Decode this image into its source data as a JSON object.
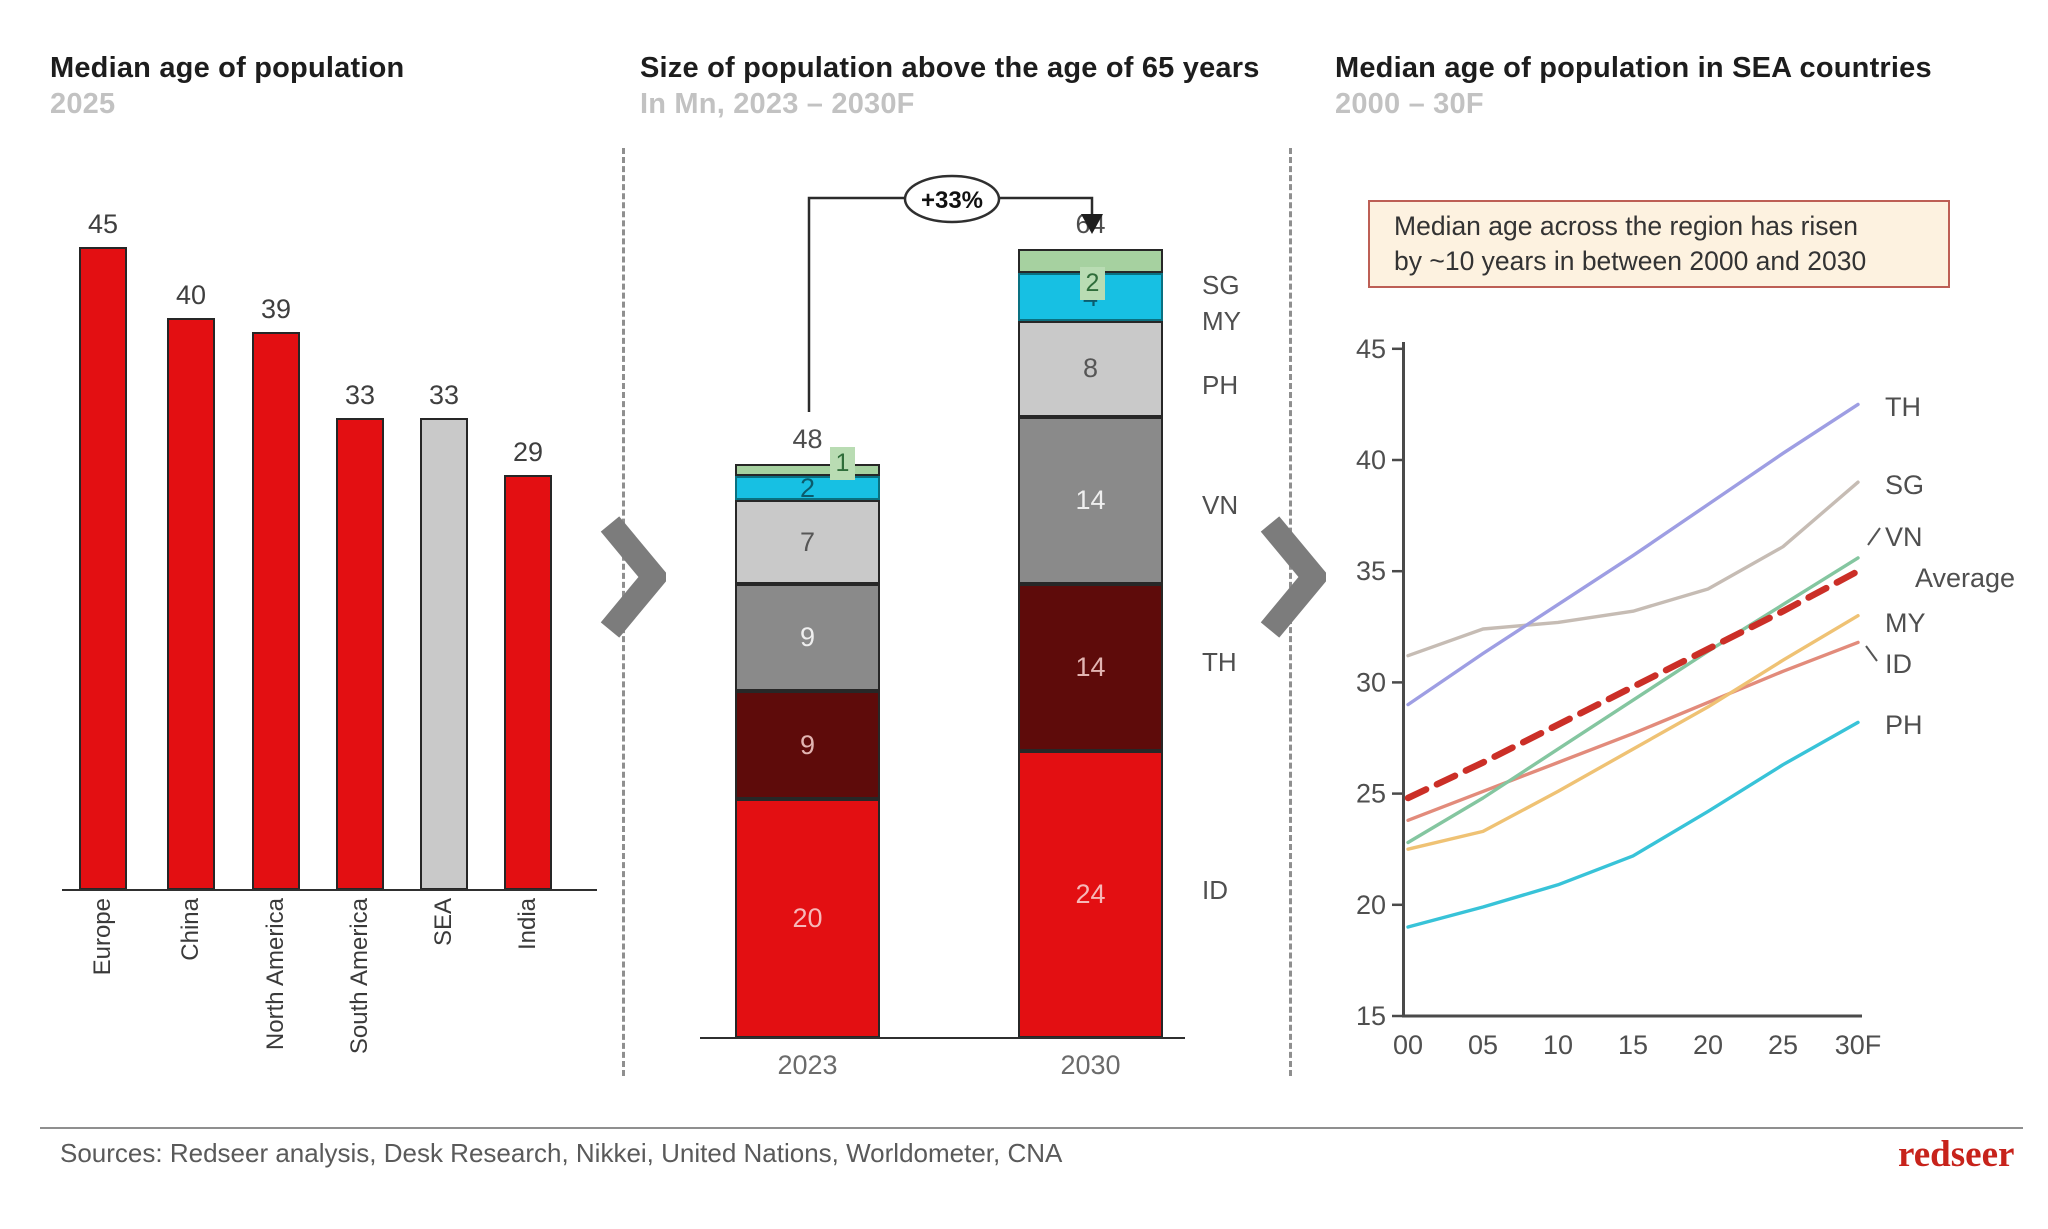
{
  "chart_data": [
    {
      "type": "bar",
      "title": "Median age of population",
      "subtitle": "2025",
      "categories": [
        "Europe",
        "China",
        "North America",
        "South America",
        "SEA",
        "India"
      ],
      "values": [
        45,
        40,
        39,
        33,
        33,
        29
      ],
      "bar_colors": [
        "#e30f12",
        "#e30f12",
        "#e30f12",
        "#e30f12",
        "#c9c9c9",
        "#e30f12"
      ],
      "ylim": [
        0,
        45
      ]
    },
    {
      "type": "stacked-bar",
      "title": "Size of population above the age of 65 years",
      "subtitle": "In Mn, 2023 – 2030F",
      "categories": [
        "2023",
        "2030"
      ],
      "series": [
        {
          "name": "ID",
          "values": [
            20,
            24
          ],
          "color": "#e30f12",
          "label_color": "#f6b8b8"
        },
        {
          "name": "TH",
          "values": [
            9,
            14
          ],
          "color": "#5e0b0a",
          "label_color": "#e2b5b2"
        },
        {
          "name": "VN",
          "values": [
            9,
            14
          ],
          "color": "#8a8a8a",
          "label_color": "#efefef"
        },
        {
          "name": "PH",
          "values": [
            7,
            8
          ],
          "color": "#c9c9c9",
          "label_color": "#565656"
        },
        {
          "name": "MY",
          "values": [
            2,
            4
          ],
          "color": "#17c0e3",
          "label_color": "#0b5c6d"
        },
        {
          "name": "SG",
          "values": [
            1,
            2
          ],
          "color": "#a6d1a0",
          "label_color": "#2f6d3a"
        }
      ],
      "totals": [
        48,
        64
      ],
      "growth_label": "+33%"
    },
    {
      "type": "line",
      "title": "Median age of population in SEA countries",
      "subtitle": "2000 – 30F",
      "note_line1": "Median age across the region has risen",
      "note_line2": "by ~10 years in between 2000 and 2030",
      "x": [
        "00",
        "05",
        "10",
        "15",
        "20",
        "25",
        "30F"
      ],
      "yticks": [
        45,
        40,
        35,
        30,
        25,
        20,
        15
      ],
      "ylim": [
        15,
        45
      ],
      "series": [
        {
          "name": "SG",
          "color": "#c6bcb4",
          "dashed": false,
          "values": [
            31.2,
            32.4,
            32.7,
            33.2,
            34.2,
            36.1,
            39
          ]
        },
        {
          "name": "ID",
          "color": "#e28b7b",
          "dashed": false,
          "values": [
            23.8,
            25.1,
            26.4,
            27.7,
            29.1,
            30.5,
            31.8
          ]
        },
        {
          "name": "MY",
          "color": "#efc274",
          "dashed": false,
          "values": [
            22.5,
            23.3,
            25.1,
            27,
            28.9,
            31,
            33
          ]
        },
        {
          "name": "VN",
          "color": "#84c6a0",
          "dashed": false,
          "values": [
            22.8,
            24.8,
            27,
            29.2,
            31.4,
            33.5,
            35.6
          ]
        },
        {
          "name": "TH",
          "color": "#9e9ee3",
          "dashed": false,
          "values": [
            29,
            31.3,
            33.5,
            35.7,
            38,
            40.3,
            42.5
          ]
        },
        {
          "name": "PH",
          "color": "#38c3d8",
          "dashed": false,
          "values": [
            19,
            19.9,
            20.9,
            22.2,
            24.2,
            26.3,
            28.2
          ]
        },
        {
          "name": "Average",
          "color": "#cb2f27",
          "dashed": true,
          "values": [
            24.8,
            26.4,
            28.1,
            29.8,
            31.5,
            33.2,
            35
          ]
        }
      ]
    }
  ],
  "footer": {
    "sources": "Sources: Redseer analysis, Desk Research, Nikkei, United Nations, Worldometer, CNA",
    "logo": "redseer"
  }
}
